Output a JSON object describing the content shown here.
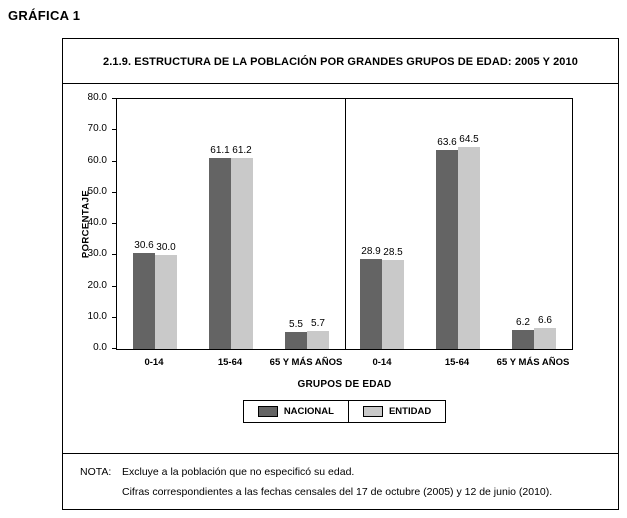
{
  "page": {
    "label": "GRÁFICA 1"
  },
  "figure": {
    "note_label": "NOTA:",
    "note_lines": [
      "Excluye a la población que no especificó su edad.",
      "Cifras correspondientes a las fechas censales del 17 de octubre (2005) y 12 de junio (2010)."
    ]
  },
  "chart_data": {
    "type": "bar",
    "title": "2.1.9. ESTRUCTURA DE LA POBLACIÓN POR GRANDES GRUPOS DE EDAD: 2005 Y 2010",
    "ylabel": "PORCENTAJE",
    "xlabel": "GRUPOS DE EDAD",
    "ylim": [
      0,
      80
    ],
    "ytick_labels": [
      "80.0",
      "70.0",
      "60.0",
      "50.0",
      "40.0",
      "30.0",
      "20.0",
      "10.0",
      "0.0"
    ],
    "categories": [
      "0-14",
      "15-64",
      "65 Y MÁS AÑOS",
      "0-14",
      "15-64",
      "65 Y MÁS AÑOS"
    ],
    "group_divider_index": 3,
    "series": [
      {
        "name": "NACIONAL",
        "color": "#646464",
        "values": [
          30.6,
          61.1,
          5.5,
          28.9,
          63.6,
          6.2
        ]
      },
      {
        "name": "ENTIDAD",
        "color": "#c9c9c9",
        "values": [
          30.0,
          61.2,
          5.7,
          28.5,
          64.5,
          6.6
        ]
      }
    ],
    "legend_position": "bottom",
    "grid": false
  }
}
